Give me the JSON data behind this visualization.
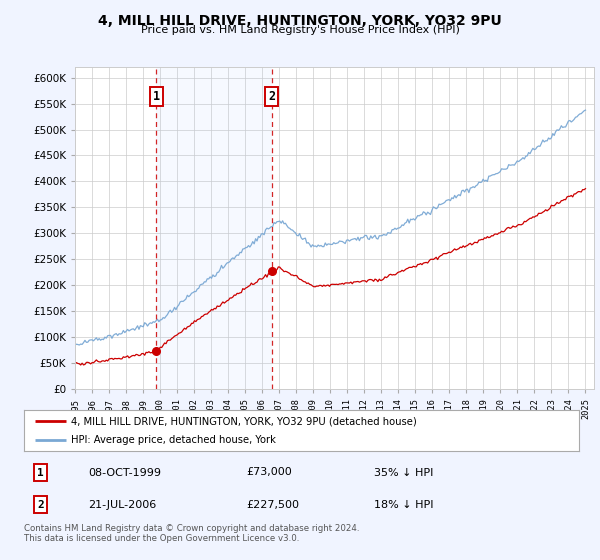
{
  "title": "4, MILL HILL DRIVE, HUNTINGTON, YORK, YO32 9PU",
  "subtitle": "Price paid vs. HM Land Registry's House Price Index (HPI)",
  "legend_line1": "4, MILL HILL DRIVE, HUNTINGTON, YORK, YO32 9PU (detached house)",
  "legend_line2": "HPI: Average price, detached house, York",
  "annotation1_date": "08-OCT-1999",
  "annotation1_price": "£73,000",
  "annotation1_hpi": "35% ↓ HPI",
  "annotation2_date": "21-JUL-2006",
  "annotation2_price": "£227,500",
  "annotation2_hpi": "18% ↓ HPI",
  "footnote": "Contains HM Land Registry data © Crown copyright and database right 2024.\nThis data is licensed under the Open Government Licence v3.0.",
  "price_color": "#cc0000",
  "hpi_color": "#7aa8d4",
  "background_color": "#f0f4ff",
  "plot_bg": "#ffffff",
  "sale1_year": 1999.77,
  "sale1_price": 73000,
  "sale2_year": 2006.55,
  "sale2_price": 227500,
  "ylim": [
    0,
    620000
  ],
  "yticks": [
    0,
    50000,
    100000,
    150000,
    200000,
    250000,
    300000,
    350000,
    400000,
    450000,
    500000,
    550000,
    600000
  ]
}
